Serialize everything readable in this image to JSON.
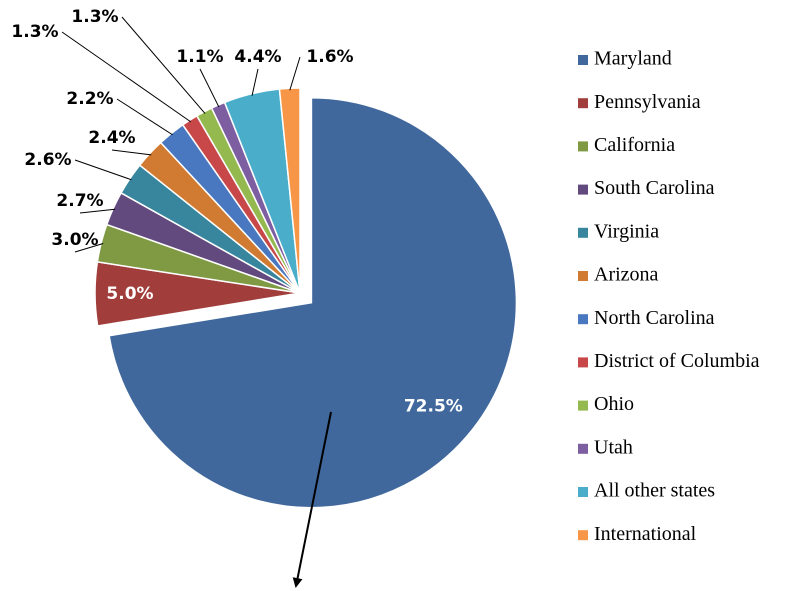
{
  "chart_data": {
    "type": "pie",
    "categories": [
      "Maryland",
      "Pennsylvania",
      "California",
      "South Carolina",
      "Virginia",
      "Arizona",
      "North Carolina",
      "District of Columbia",
      "Ohio",
      "Utah",
      "All other states",
      "International"
    ],
    "values": [
      72.5,
      5.0,
      3.0,
      2.7,
      2.6,
      2.4,
      2.2,
      1.3,
      1.3,
      1.1,
      4.4,
      1.6
    ],
    "value_labels": [
      "72.5%",
      "5.0%",
      "3.0%",
      "2.7%",
      "2.6%",
      "2.4%",
      "2.2%",
      "1.3%",
      "1.3%",
      "1.1%",
      "4.4%",
      "1.6%"
    ],
    "colors": [
      "#41689c",
      "#a13e3c",
      "#7f9a43",
      "#624a7e",
      "#38869e",
      "#d07b31",
      "#4a78c0",
      "#c84849",
      "#94b94f",
      "#7d5ea0",
      "#4aaecb",
      "#f79646"
    ],
    "legend": "right"
  }
}
